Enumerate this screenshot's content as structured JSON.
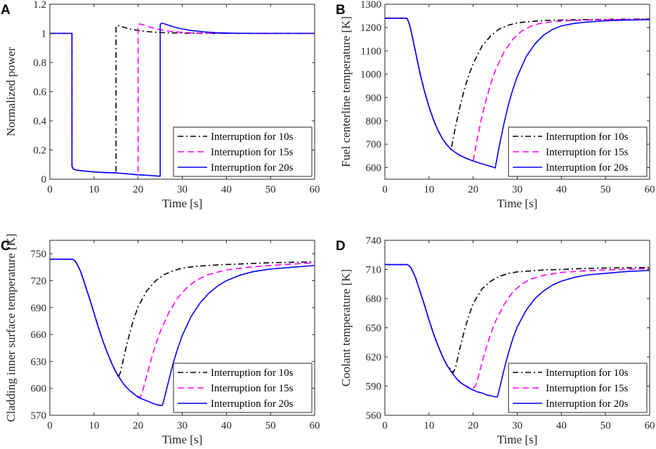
{
  "colors": {
    "background": "#ffffff",
    "axis": "#262626",
    "series_10s": "#000000",
    "series_15s": "#ff00ff",
    "series_20s": "#0000ff"
  },
  "chart_data": [
    {
      "panel": "A",
      "type": "line",
      "xlabel": "Time [s]",
      "ylabel": "Normalized power",
      "xlim": [
        0,
        60
      ],
      "ylim": [
        0,
        1.2
      ],
      "xticks": [
        0,
        10,
        20,
        30,
        40,
        50,
        60
      ],
      "yticks": [
        0,
        0.2,
        0.4,
        0.6,
        0.8,
        1,
        1.2
      ],
      "ytick_labels": [
        "0",
        "0.2",
        "0.4",
        "0.6",
        "0.8",
        "1",
        "1.2"
      ],
      "legend_position": "bottom-right",
      "series": [
        {
          "name": "Interruption for 10s",
          "style": "dashdot",
          "color": "#000000",
          "x": [
            0,
            5,
            5,
            5.3,
            6,
            8,
            10,
            12,
            15,
            15,
            15.3,
            16,
            17,
            18,
            20,
            22,
            25,
            28,
            32,
            36,
            40,
            50,
            60
          ],
          "y": [
            1,
            1,
            0.09,
            0.07,
            0.062,
            0.055,
            0.05,
            0.046,
            0.043,
            1.05,
            1.055,
            1.05,
            1.04,
            1.03,
            1.02,
            1.012,
            1.006,
            1.003,
            1.001,
            1.0,
            1.0,
            1.0,
            1.0
          ]
        },
        {
          "name": "Interruption for 15s",
          "style": "dashed",
          "color": "#ff00ff",
          "x": [
            0,
            5,
            5,
            5.3,
            6,
            8,
            10,
            12,
            15,
            17,
            20,
            20,
            20.3,
            21,
            22,
            23,
            25,
            27,
            30,
            33,
            37,
            42,
            50,
            60
          ],
          "y": [
            1,
            1,
            0.09,
            0.07,
            0.062,
            0.055,
            0.05,
            0.046,
            0.043,
            0.038,
            0.03,
            1.06,
            1.065,
            1.06,
            1.05,
            1.04,
            1.025,
            1.015,
            1.007,
            1.003,
            1.001,
            1.0,
            1.0,
            1.0
          ]
        },
        {
          "name": "Interruption for 20s",
          "style": "solid",
          "color": "#0000ff",
          "x": [
            0,
            5,
            5,
            5.3,
            6,
            8,
            10,
            12,
            15,
            17,
            20,
            22,
            25,
            25,
            25.3,
            26,
            27,
            28,
            30,
            32,
            35,
            38,
            42,
            47,
            60
          ],
          "y": [
            1,
            1,
            0.09,
            0.07,
            0.062,
            0.055,
            0.05,
            0.046,
            0.043,
            0.038,
            0.03,
            0.027,
            0.02,
            1.06,
            1.07,
            1.065,
            1.055,
            1.045,
            1.03,
            1.02,
            1.01,
            1.004,
            1.001,
            1.0,
            1.0
          ]
        }
      ]
    },
    {
      "panel": "B",
      "type": "line",
      "xlabel": "Time [s]",
      "ylabel": "Fuel centerline temperature [K]",
      "xlim": [
        0,
        60
      ],
      "ylim": [
        550,
        1300
      ],
      "xticks": [
        0,
        10,
        20,
        30,
        40,
        50,
        60
      ],
      "yticks": [
        600,
        700,
        800,
        900,
        1000,
        1100,
        1200,
        1300
      ],
      "ytick_labels": [
        "600",
        "700",
        "800",
        "900",
        "1000",
        "1100",
        "1200",
        "1300"
      ],
      "legend_position": "bottom-right",
      "series": [
        {
          "name": "Interruption for 10s",
          "style": "dashdot",
          "color": "#000000",
          "x": [
            0,
            5,
            5.5,
            6,
            7,
            8,
            9,
            10,
            11,
            12,
            13,
            14,
            15,
            16,
            17,
            18,
            19,
            20,
            22,
            24,
            26,
            28,
            30,
            33,
            36,
            40,
            45,
            50,
            60
          ],
          "y": [
            1240,
            1240,
            1218,
            1180,
            1090,
            1000,
            925,
            860,
            805,
            760,
            725,
            698,
            678,
            775,
            860,
            935,
            995,
            1045,
            1120,
            1165,
            1195,
            1210,
            1220,
            1226,
            1230,
            1232,
            1234,
            1235,
            1237
          ]
        },
        {
          "name": "Interruption for 15s",
          "style": "dashed",
          "color": "#ff00ff",
          "x": [
            0,
            5,
            5.5,
            6,
            7,
            8,
            9,
            10,
            11,
            12,
            13,
            14,
            15,
            16,
            17,
            18,
            19,
            20,
            21,
            22,
            23,
            24,
            25,
            27,
            29,
            31,
            33,
            35,
            38,
            41,
            45,
            50,
            60
          ],
          "y": [
            1240,
            1240,
            1218,
            1180,
            1090,
            1000,
            925,
            860,
            805,
            760,
            725,
            698,
            678,
            664,
            652,
            643,
            635,
            628,
            730,
            820,
            895,
            960,
            1015,
            1095,
            1150,
            1185,
            1205,
            1217,
            1225,
            1229,
            1232,
            1234,
            1236
          ]
        },
        {
          "name": "Interruption for 20s",
          "style": "solid",
          "color": "#0000ff",
          "x": [
            0,
            5,
            5.5,
            6,
            7,
            8,
            9,
            10,
            11,
            12,
            13,
            14,
            15,
            16,
            17,
            18,
            19,
            20,
            21,
            22,
            23,
            24,
            25,
            26,
            27,
            28,
            29,
            30,
            32,
            34,
            36,
            38,
            40,
            43,
            46,
            50,
            55,
            60
          ],
          "y": [
            1240,
            1240,
            1218,
            1180,
            1090,
            1000,
            925,
            860,
            805,
            760,
            725,
            698,
            678,
            664,
            652,
            643,
            635,
            628,
            622,
            616,
            610,
            605,
            598,
            700,
            790,
            870,
            935,
            990,
            1075,
            1130,
            1168,
            1192,
            1207,
            1218,
            1224,
            1229,
            1232,
            1234
          ]
        }
      ]
    },
    {
      "panel": "C",
      "type": "line",
      "xlabel": "Time [s]",
      "ylabel": "Cladding inner surface temperature [K]",
      "xlim": [
        0,
        60
      ],
      "ylim": [
        570,
        765
      ],
      "xticks": [
        0,
        10,
        20,
        30,
        40,
        50,
        60
      ],
      "yticks": [
        570,
        600,
        630,
        660,
        690,
        720,
        750
      ],
      "ytick_labels": [
        "570",
        "600",
        "630",
        "660",
        "690",
        "720",
        "750"
      ],
      "legend_position": "bottom-right",
      "series": [
        {
          "name": "Interruption for 10s",
          "style": "dashdot",
          "color": "#000000",
          "x": [
            0,
            5,
            5.5,
            6,
            7,
            8,
            9,
            10,
            11,
            12,
            13,
            14,
            15,
            15.5,
            16,
            17,
            18,
            19,
            20,
            22,
            24,
            26,
            28,
            30,
            33,
            36,
            40,
            45,
            50,
            60
          ],
          "y": [
            744,
            744,
            743,
            740,
            730,
            715,
            700,
            684,
            668,
            653,
            640,
            628,
            618,
            612,
            618,
            640,
            660,
            677,
            691,
            709,
            720,
            727,
            731,
            734,
            736,
            737,
            738,
            739,
            740,
            741
          ]
        },
        {
          "name": "Interruption for 15s",
          "style": "dashed",
          "color": "#ff00ff",
          "x": [
            0,
            5,
            5.5,
            6,
            7,
            8,
            9,
            10,
            11,
            12,
            13,
            14,
            15,
            16,
            17,
            18,
            19,
            20,
            20.5,
            21,
            22,
            23,
            24,
            25,
            27,
            29,
            31,
            33,
            36,
            40,
            45,
            50,
            60
          ],
          "y": [
            744,
            744,
            743,
            740,
            730,
            715,
            700,
            684,
            668,
            653,
            640,
            628,
            618,
            610,
            603,
            598,
            594,
            591,
            590,
            597,
            615,
            633,
            649,
            663,
            685,
            701,
            712,
            720,
            727,
            732,
            735,
            737,
            740
          ]
        },
        {
          "name": "Interruption for 20s",
          "style": "solid",
          "color": "#0000ff",
          "x": [
            0,
            5,
            5.5,
            6,
            7,
            8,
            9,
            10,
            11,
            12,
            13,
            14,
            15,
            16,
            17,
            18,
            19,
            20,
            21,
            22,
            23,
            24,
            25,
            25.5,
            26,
            27,
            28,
            29,
            30,
            32,
            34,
            36,
            38,
            40,
            43,
            46,
            50,
            55,
            60
          ],
          "y": [
            744,
            744,
            743,
            740,
            730,
            715,
            700,
            684,
            668,
            653,
            640,
            628,
            618,
            610,
            603,
            598,
            594,
            590,
            588,
            586,
            584,
            582,
            581,
            581,
            590,
            610,
            629,
            645,
            659,
            680,
            695,
            706,
            714,
            720,
            726,
            730,
            733,
            735,
            737
          ]
        }
      ]
    },
    {
      "panel": "D",
      "type": "line",
      "xlabel": "Time [s]",
      "ylabel": "Coolant temperature [K]",
      "xlim": [
        0,
        60
      ],
      "ylim": [
        560,
        740
      ],
      "xticks": [
        0,
        10,
        20,
        30,
        40,
        50,
        60
      ],
      "yticks": [
        560,
        590,
        620,
        650,
        680,
        710,
        740
      ],
      "ytick_labels": [
        "560",
        "590",
        "620",
        "650",
        "680",
        "710",
        "740"
      ],
      "legend_position": "bottom-right",
      "series": [
        {
          "name": "Interruption for 10s",
          "style": "dashdot",
          "color": "#000000",
          "x": [
            0,
            5,
            5.5,
            6,
            7,
            8,
            9,
            10,
            11,
            12,
            13,
            14,
            15,
            15.5,
            16,
            17,
            18,
            19,
            20,
            22,
            24,
            26,
            28,
            30,
            33,
            36,
            40,
            45,
            50,
            60
          ],
          "y": [
            715,
            715,
            714,
            711,
            701,
            687,
            673,
            658,
            644,
            632,
            621,
            612,
            607,
            604,
            609,
            629,
            647,
            662,
            675,
            690,
            698,
            703,
            706,
            707.5,
            708.5,
            709.5,
            710,
            711,
            711.5,
            712
          ]
        },
        {
          "name": "Interruption for 15s",
          "style": "dashed",
          "color": "#ff00ff",
          "x": [
            0,
            5,
            5.5,
            6,
            7,
            8,
            9,
            10,
            11,
            12,
            13,
            14,
            15,
            16,
            17,
            18,
            19,
            20,
            20.5,
            21,
            22,
            23,
            24,
            25,
            27,
            29,
            31,
            33,
            36,
            40,
            45,
            50,
            60
          ],
          "y": [
            715,
            715,
            714,
            711,
            701,
            687,
            673,
            658,
            644,
            632,
            621,
            612,
            605,
            599,
            594,
            591,
            589,
            588,
            590,
            597,
            614,
            630,
            644,
            656,
            674,
            687,
            695,
            700,
            704,
            707,
            708.5,
            709.5,
            711
          ]
        },
        {
          "name": "Interruption for 20s",
          "style": "solid",
          "color": "#0000ff",
          "x": [
            0,
            5,
            5.5,
            6,
            7,
            8,
            9,
            10,
            11,
            12,
            13,
            14,
            15,
            16,
            17,
            18,
            19,
            20,
            21,
            22,
            23,
            24,
            25,
            25.5,
            26,
            27,
            28,
            29,
            30,
            32,
            34,
            36,
            38,
            40,
            43,
            46,
            50,
            55,
            60
          ],
          "y": [
            715,
            715,
            714,
            711,
            701,
            687,
            673,
            658,
            644,
            632,
            621,
            612,
            605,
            599,
            594,
            591,
            588,
            586,
            584,
            583,
            581,
            580,
            579,
            579,
            588,
            607,
            624,
            639,
            651,
            668,
            680,
            688,
            694,
            698,
            702,
            704.5,
            706,
            708,
            709
          ]
        }
      ]
    }
  ]
}
